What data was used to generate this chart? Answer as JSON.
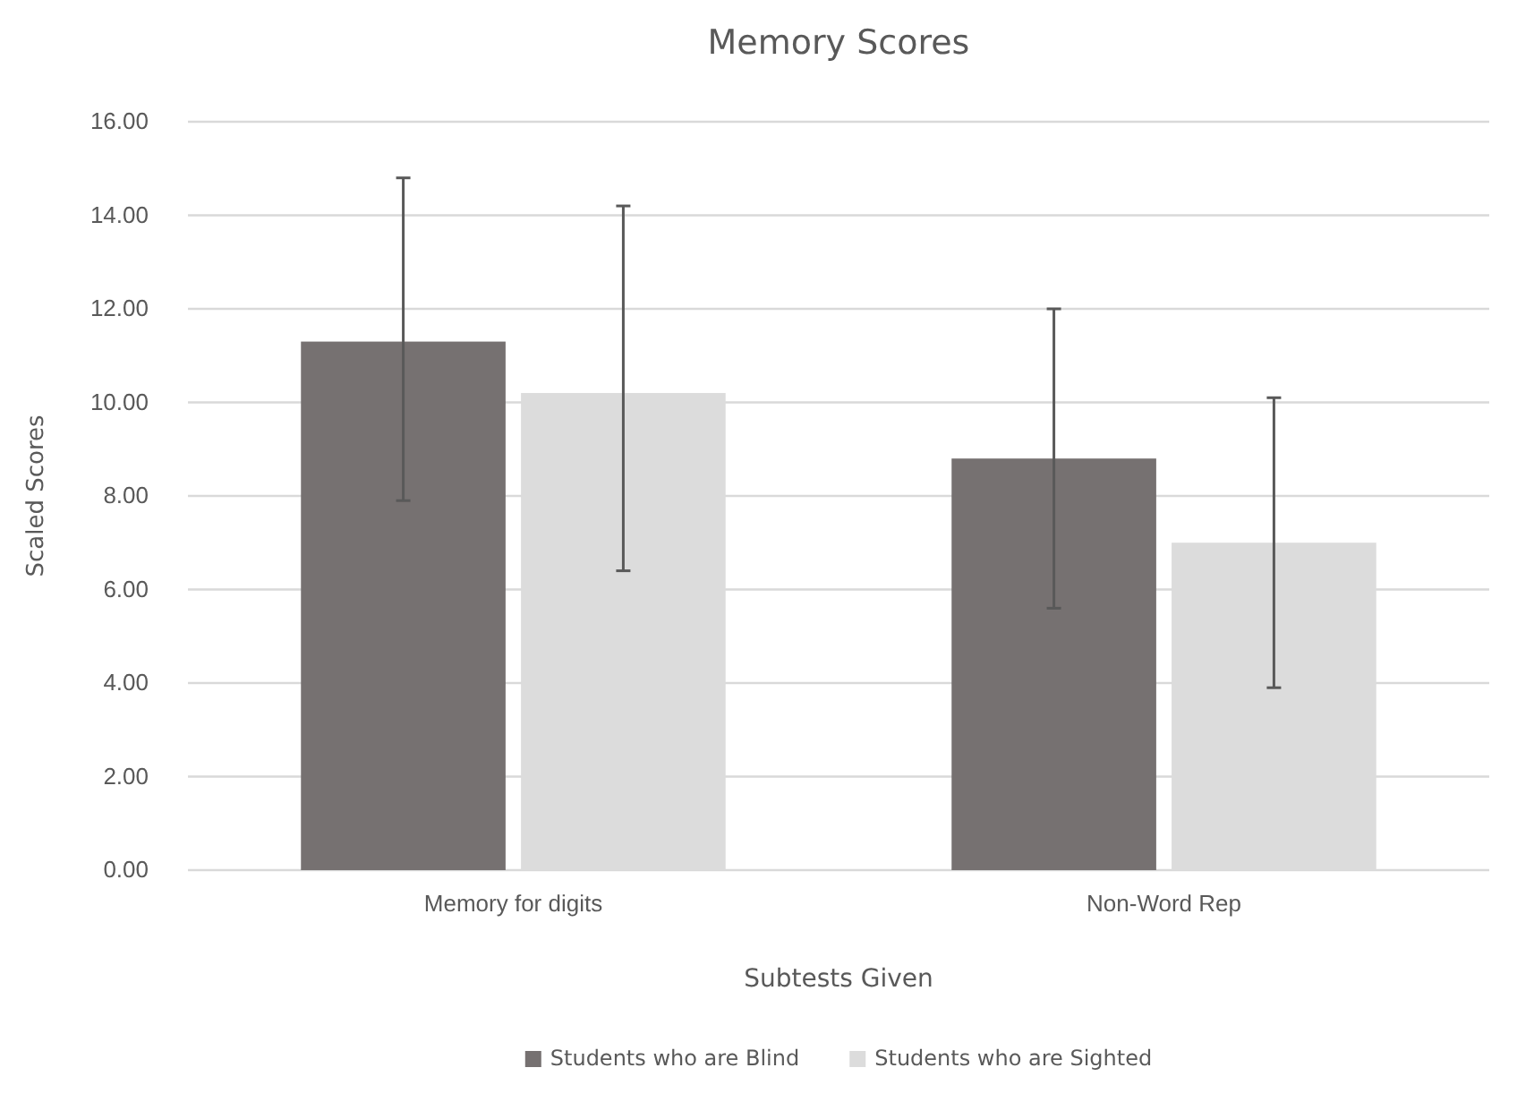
{
  "chart_data": {
    "type": "bar",
    "title": "Memory Scores",
    "xlabel": "Subtests Given",
    "ylabel": "Scaled Scores",
    "categories": [
      "Memory for digits",
      "Non-Word Rep"
    ],
    "series": [
      {
        "name": "Students who are Blind",
        "color": "#767171",
        "values": [
          11.3,
          8.8
        ],
        "errors": [
          [
            7.9,
            14.8
          ],
          [
            5.6,
            12.0
          ]
        ]
      },
      {
        "name": "Students who are Sighted",
        "color": "#dcdcdc",
        "values": [
          10.2,
          7.0
        ],
        "errors": [
          [
            6.4,
            14.2
          ],
          [
            3.9,
            10.1
          ]
        ]
      }
    ],
    "ylim": [
      0,
      16
    ],
    "yticks": [
      {
        "value": 0,
        "label": "0.00"
      },
      {
        "value": 2,
        "label": "2.00"
      },
      {
        "value": 4,
        "label": "4.00"
      },
      {
        "value": 6,
        "label": "6.00"
      },
      {
        "value": 8,
        "label": "8.00"
      },
      {
        "value": 10,
        "label": "10.00"
      },
      {
        "value": 12,
        "label": "12.00"
      },
      {
        "value": 14,
        "label": "14.00"
      },
      {
        "value": 16,
        "label": "16.00"
      }
    ],
    "grid": "y",
    "legend": "bottom"
  }
}
